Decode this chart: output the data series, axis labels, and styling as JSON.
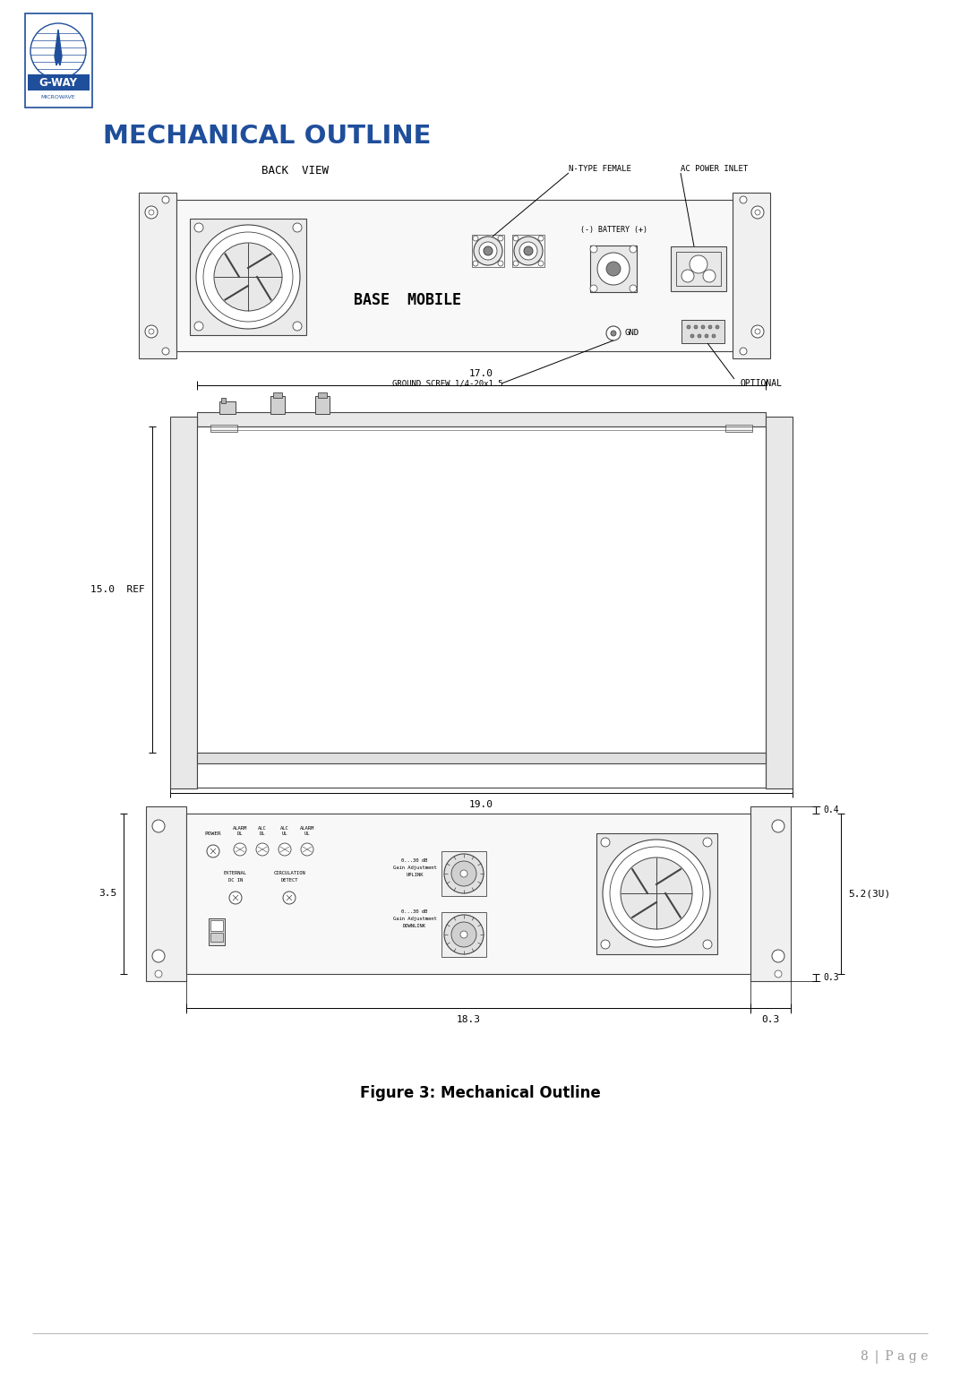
{
  "title": "MECHANICAL OUTLINE",
  "title_color": "#1F4E9B",
  "figure_caption": "Figure 3: Mechanical Outline",
  "background_color": "#ffffff",
  "page_number": "8 | P a g e",
  "back_view_label": "BACK  VIEW",
  "dim_17": "17.0",
  "dim_19": "19.0",
  "dim_15_ref": "15.0  REF",
  "dim_18_3": "18.3",
  "dim_5_2": "5.2(3U)",
  "dim_3_5": "3.5",
  "dim_0_4": "0.4",
  "dim_0_3a": "0.3",
  "dim_0_3b": "0.3",
  "label_base_mobile": "BASE  MOBILE",
  "label_n_type": "N-TYPE FEMALE",
  "label_ac_power": "AC POWER INLET",
  "label_battery": "(-) BATTERY (+)",
  "label_gnd": "GND",
  "label_ground_screw": "GROUND SCREW 1/4-20x1.5",
  "label_optional": "OPTIONAL",
  "dc": "#444444",
  "lc": "#222222"
}
